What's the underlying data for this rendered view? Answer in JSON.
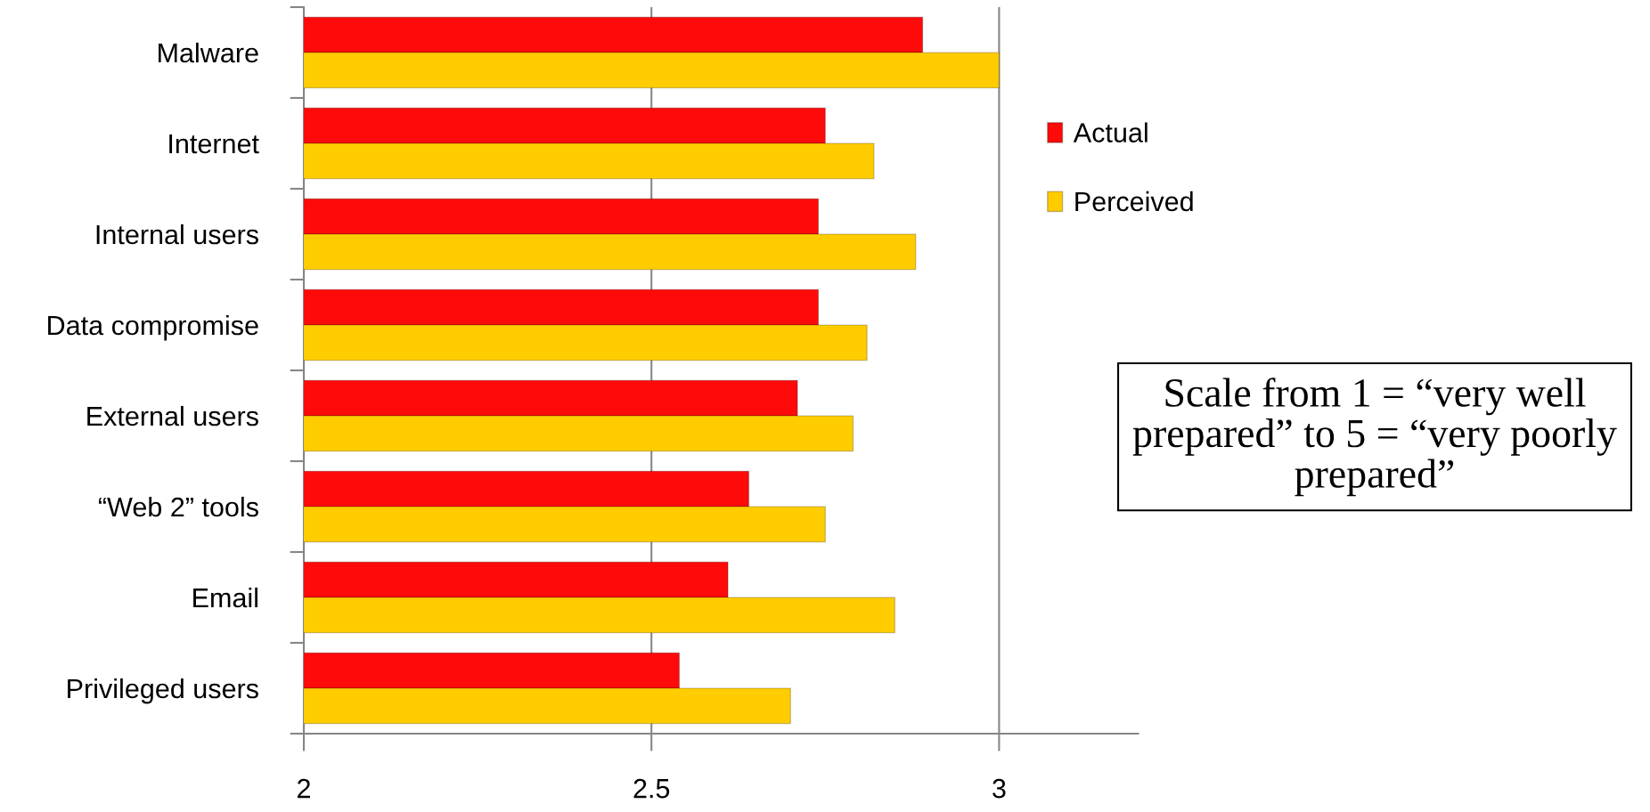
{
  "chart_data": {
    "type": "bar",
    "orientation": "horizontal",
    "categories": [
      "Malware",
      "Internet",
      "Internal users",
      "Data compromise",
      "External users",
      "“Web 2” tools",
      "Email",
      "Privileged users"
    ],
    "series": [
      {
        "name": "Actual",
        "color": "#fe0a0a",
        "values": [
          2.89,
          2.75,
          2.74,
          2.74,
          2.71,
          2.64,
          2.61,
          2.54
        ]
      },
      {
        "name": "Perceived",
        "color": "#ffcc00",
        "values": [
          3.0,
          2.82,
          2.88,
          2.81,
          2.79,
          2.75,
          2.85,
          2.7
        ]
      }
    ],
    "xlim": [
      2,
      3.2
    ],
    "xticks": [
      2,
      2.5,
      3
    ],
    "grid": "x",
    "legend": "right",
    "annotations": [
      "Scale from 1 = “very well\nprepared” to 5 = “very poorly\nprepared”"
    ]
  }
}
